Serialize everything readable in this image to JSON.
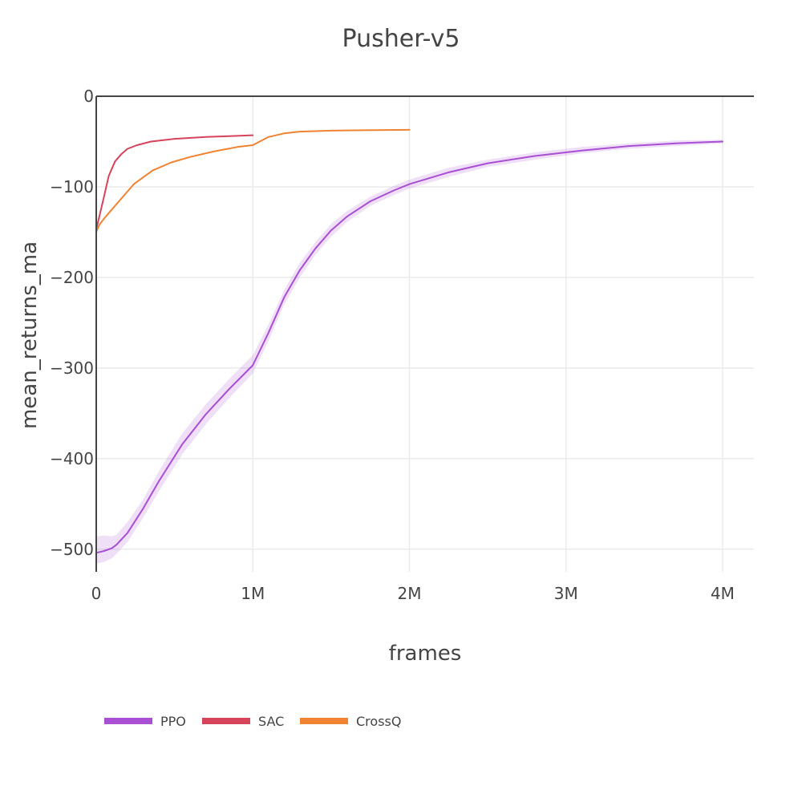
{
  "chart_data": {
    "type": "line",
    "title": "Pusher-v5",
    "xlabel": "frames",
    "ylabel": "mean_returns_ma",
    "xlim": [
      0,
      4200000
    ],
    "ylim": [
      -525,
      0
    ],
    "xticks": [
      {
        "value": 0,
        "label": "0"
      },
      {
        "value": 1000000,
        "label": "1M"
      },
      {
        "value": 2000000,
        "label": "2M"
      },
      {
        "value": 3000000,
        "label": "3M"
      },
      {
        "value": 4000000,
        "label": "4M"
      }
    ],
    "yticks": [
      {
        "value": 0,
        "label": "0"
      },
      {
        "value": -100,
        "label": "−100"
      },
      {
        "value": -200,
        "label": "−200"
      },
      {
        "value": -300,
        "label": "−300"
      },
      {
        "value": -400,
        "label": "−400"
      },
      {
        "value": -500,
        "label": "−500"
      }
    ],
    "grid": true,
    "legend_position": "bottom-left",
    "series": [
      {
        "name": "PPO",
        "color": "#a94fd4",
        "band_color": "#a94fd4",
        "x": [
          0,
          50000,
          100000,
          130000,
          200000,
          300000,
          400000,
          550000,
          700000,
          850000,
          1000000,
          1100000,
          1200000,
          1300000,
          1400000,
          1500000,
          1600000,
          1750000,
          1900000,
          2000000,
          2250000,
          2500000,
          2800000,
          3100000,
          3400000,
          3700000,
          4000000
        ],
        "values": [
          -504,
          -502,
          -499,
          -495,
          -482,
          -455,
          -425,
          -384,
          -351,
          -323,
          -297,
          -261,
          -222,
          -192,
          -168,
          -148,
          -133,
          -116,
          -104,
          -97,
          -84,
          -74,
          -66,
          -60,
          -55,
          -52,
          -50
        ],
        "lower": [
          -516,
          -514,
          -510,
          -505,
          -492,
          -465,
          -436,
          -395,
          -362,
          -333,
          -306,
          -270,
          -230,
          -200,
          -175,
          -155,
          -139,
          -121,
          -109,
          -102,
          -89,
          -78,
          -70,
          -63,
          -58,
          -55,
          -52
        ],
        "upper": [
          -486,
          -485,
          -486,
          -484,
          -470,
          -445,
          -414,
          -372,
          -340,
          -312,
          -286,
          -252,
          -214,
          -184,
          -161,
          -141,
          -127,
          -111,
          -99,
          -92,
          -79,
          -70,
          -62,
          -56,
          -52,
          -49,
          -48
        ]
      },
      {
        "name": "SAC",
        "color": "#d6435a",
        "x": [
          0,
          40000,
          80000,
          120000,
          160000,
          200000,
          260000,
          350000,
          500000,
          700000,
          850000,
          1000000
        ],
        "values": [
          -147,
          -118,
          -88,
          -72,
          -64,
          -58,
          -54,
          -50,
          -47,
          -45,
          -44,
          -43
        ]
      },
      {
        "name": "CrossQ",
        "color": "#f08231",
        "x": [
          0,
          20000,
          50000,
          100000,
          150000,
          240000,
          360000,
          480000,
          600000,
          750000,
          900000,
          1000000,
          1100000,
          1200000,
          1300000,
          1500000,
          1700000,
          2000000
        ],
        "values": [
          -150,
          -142,
          -135,
          -125,
          -115,
          -97,
          -82,
          -73,
          -67,
          -61,
          -56,
          -54,
          -45,
          -41,
          -39,
          -38,
          -37.5,
          -37
        ]
      }
    ]
  }
}
